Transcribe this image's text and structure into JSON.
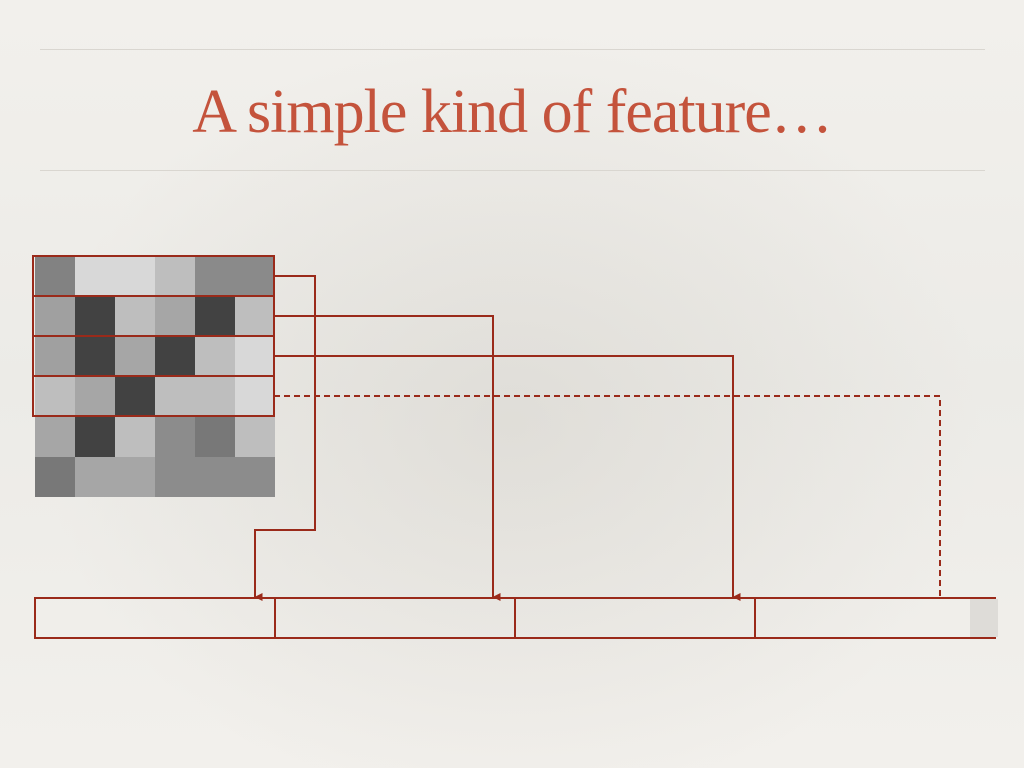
{
  "slide": {
    "title": "A simple kind of feature…"
  },
  "colors": {
    "title": "#c4533c",
    "lines": "#9a2a1a",
    "rule": "#d9d6d0"
  },
  "image_grid": {
    "rows": 6,
    "cols": 6,
    "gray_values": [
      [
        130,
        216,
        216,
        190,
        138,
        138
      ],
      [
        160,
        66,
        190,
        166,
        66,
        190
      ],
      [
        160,
        66,
        166,
        66,
        190,
        216
      ],
      [
        190,
        166,
        66,
        190,
        190,
        216
      ],
      [
        166,
        66,
        190,
        140,
        120,
        190
      ],
      [
        120,
        166,
        166,
        140,
        140,
        140
      ]
    ],
    "highlighted_rows": [
      0,
      1,
      2,
      3
    ]
  },
  "feature_vector": {
    "segments": 4,
    "dashed_segment": 3
  }
}
